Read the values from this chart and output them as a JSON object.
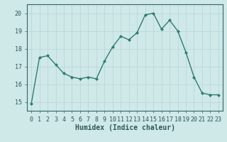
{
  "x": [
    0,
    1,
    2,
    3,
    4,
    5,
    6,
    7,
    8,
    9,
    10,
    11,
    12,
    13,
    14,
    15,
    16,
    17,
    18,
    19,
    20,
    21,
    22,
    23
  ],
  "y": [
    14.9,
    17.5,
    17.6,
    17.1,
    16.6,
    16.4,
    16.3,
    16.4,
    16.3,
    17.3,
    18.1,
    18.7,
    18.5,
    18.9,
    19.9,
    20.0,
    19.1,
    19.6,
    19.0,
    17.8,
    16.4,
    15.5,
    15.4,
    15.4
  ],
  "line_color": "#2e7d6e",
  "marker": "D",
  "markersize": 2.0,
  "linewidth": 1.0,
  "xlabel": "Humidex (Indice chaleur)",
  "xlim": [
    -0.5,
    23.5
  ],
  "ylim": [
    14.5,
    20.5
  ],
  "yticks": [
    15,
    16,
    17,
    18,
    19,
    20
  ],
  "xticks": [
    0,
    1,
    2,
    3,
    4,
    5,
    6,
    7,
    8,
    9,
    10,
    11,
    12,
    13,
    14,
    15,
    16,
    17,
    18,
    19,
    20,
    21,
    22,
    23
  ],
  "xtick_labels": [
    "0",
    "1",
    "2",
    "3",
    "4",
    "5",
    "6",
    "7",
    "8",
    "9",
    "10",
    "11",
    "12",
    "13",
    "14",
    "15",
    "16",
    "17",
    "18",
    "19",
    "20",
    "21",
    "22",
    "23"
  ],
  "bg_color": "#cfe8e8",
  "grid_color": "#b8d4d4",
  "axes_color": "#336666",
  "tick_color": "#2e5858",
  "label_fontsize": 6.5,
  "tick_fontsize": 6.0,
  "xlabel_fontsize": 7.0
}
